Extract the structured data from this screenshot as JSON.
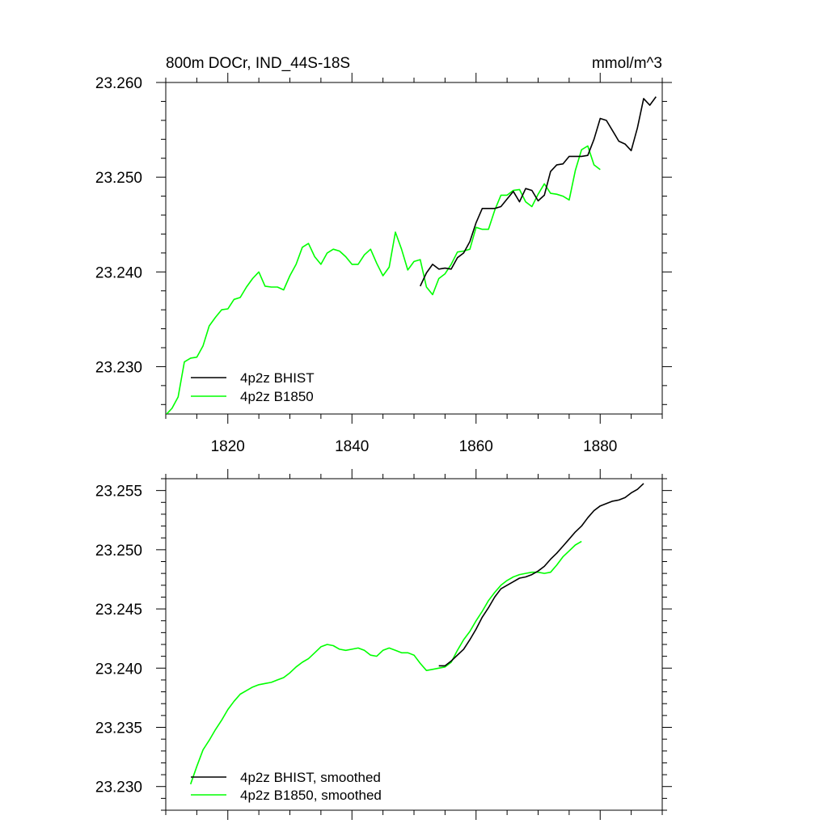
{
  "chart_data": [
    {
      "type": "line",
      "title": "800m DOCr, IND_44S-18S",
      "units": "mmol/m^3",
      "xlim": [
        1810,
        1890
      ],
      "ylim": [
        23.225,
        23.26
      ],
      "x_ticks": [
        1820,
        1840,
        1860,
        1880
      ],
      "y_ticks": [
        23.23,
        23.24,
        23.25,
        23.26
      ],
      "y_tick_labels": [
        "23.230",
        "23.240",
        "23.250",
        "23.260"
      ],
      "grid": false,
      "legend_position": "bottom-left",
      "series": [
        {
          "name": "4p2z BHIST",
          "color": "#000000",
          "x": [
            1851,
            1852,
            1853,
            1854,
            1855,
            1856,
            1857,
            1858,
            1859,
            1860,
            1861,
            1862,
            1863,
            1864,
            1865,
            1866,
            1867,
            1868,
            1869,
            1870,
            1871,
            1872,
            1873,
            1874,
            1875,
            1876,
            1877,
            1878,
            1879,
            1880,
            1881,
            1882,
            1883,
            1884,
            1885,
            1886,
            1887,
            1888,
            1889
          ],
          "y": [
            23.2385,
            23.2399,
            23.2408,
            23.2403,
            23.2404,
            23.2403,
            23.2415,
            23.242,
            23.2432,
            23.2452,
            23.2467,
            23.2467,
            23.2467,
            23.2469,
            23.2477,
            23.2485,
            23.2474,
            23.2488,
            23.2486,
            23.2475,
            23.2481,
            23.2506,
            23.2513,
            23.2514,
            23.2522,
            23.2522,
            23.2522,
            23.2523,
            23.254,
            23.2562,
            23.256,
            23.2549,
            23.2538,
            23.2535,
            23.2528,
            23.2552,
            23.2583,
            23.2576,
            23.2585
          ]
        },
        {
          "name": "4p2z B1850",
          "color": "#00ff00",
          "x": [
            1810,
            1811,
            1812,
            1813,
            1814,
            1815,
            1816,
            1817,
            1818,
            1819,
            1820,
            1821,
            1822,
            1823,
            1824,
            1825,
            1826,
            1827,
            1828,
            1829,
            1830,
            1831,
            1832,
            1833,
            1834,
            1835,
            1836,
            1837,
            1838,
            1839,
            1840,
            1841,
            1842,
            1843,
            1844,
            1845,
            1846,
            1847,
            1848,
            1849,
            1850,
            1851,
            1852,
            1853,
            1854,
            1855,
            1856,
            1857,
            1858,
            1859,
            1860,
            1861,
            1862,
            1863,
            1864,
            1865,
            1866,
            1867,
            1868,
            1869,
            1870,
            1871,
            1872,
            1873,
            1874,
            1875,
            1876,
            1877,
            1878,
            1879,
            1880
          ],
          "y": [
            23.2249,
            23.2256,
            23.2268,
            23.2305,
            23.2309,
            23.231,
            23.2322,
            23.2343,
            23.2352,
            23.236,
            23.2361,
            23.2371,
            23.2373,
            23.2384,
            23.2393,
            23.24,
            23.2385,
            23.2384,
            23.2384,
            23.2381,
            23.2396,
            23.2408,
            23.2426,
            23.243,
            23.2416,
            23.2408,
            23.242,
            23.2424,
            23.2422,
            23.2416,
            23.2408,
            23.2408,
            23.2418,
            23.2424,
            23.2409,
            23.2396,
            23.2405,
            23.2442,
            23.2424,
            23.2402,
            23.2411,
            23.2413,
            23.2384,
            23.2376,
            23.2393,
            23.2398,
            23.2408,
            23.2421,
            23.2422,
            23.2424,
            23.2447,
            23.2445,
            23.2445,
            23.2465,
            23.2481,
            23.2481,
            23.2486,
            23.2487,
            23.2474,
            23.2469,
            23.2482,
            23.2493,
            23.2483,
            23.2482,
            23.248,
            23.2476,
            23.2507,
            23.2529,
            23.2533,
            23.2513,
            23.2508
          ]
        }
      ]
    },
    {
      "type": "line",
      "title": "",
      "xlim": [
        1810,
        1890
      ],
      "ylim": [
        23.228,
        23.256
      ],
      "x_ticks": [
        1820,
        1840,
        1860,
        1880
      ],
      "y_ticks": [
        23.23,
        23.235,
        23.24,
        23.245,
        23.25,
        23.255
      ],
      "y_tick_labels": [
        "23.230",
        "23.235",
        "23.240",
        "23.245",
        "23.250",
        "23.255"
      ],
      "grid": false,
      "legend_position": "bottom-left",
      "series": [
        {
          "name": "4p2z BHIST, smoothed",
          "color": "#000000",
          "x": [
            1854,
            1855,
            1856,
            1857,
            1858,
            1859,
            1860,
            1861,
            1862,
            1863,
            1864,
            1865,
            1866,
            1867,
            1868,
            1869,
            1870,
            1871,
            1872,
            1873,
            1874,
            1875,
            1876,
            1877,
            1878,
            1879,
            1880,
            1881,
            1882,
            1883,
            1884,
            1885,
            1886,
            1887
          ],
          "y": [
            23.2402,
            23.2402,
            23.2406,
            23.2411,
            23.2416,
            23.2424,
            23.2433,
            23.2443,
            23.2451,
            23.246,
            23.2467,
            23.247,
            23.2473,
            23.2476,
            23.2477,
            23.2479,
            23.2482,
            23.2486,
            23.2492,
            23.2497,
            23.2503,
            23.2509,
            23.2515,
            23.252,
            23.2527,
            23.2533,
            23.2537,
            23.2539,
            23.2541,
            23.2542,
            23.2544,
            23.2548,
            23.2551,
            23.2556
          ]
        },
        {
          "name": "4p2z B1850, smoothed",
          "color": "#00ff00",
          "x": [
            1814,
            1815,
            1816,
            1817,
            1818,
            1819,
            1820,
            1821,
            1822,
            1823,
            1824,
            1825,
            1826,
            1827,
            1828,
            1829,
            1830,
            1831,
            1832,
            1833,
            1834,
            1835,
            1836,
            1837,
            1838,
            1839,
            1840,
            1841,
            1842,
            1843,
            1844,
            1845,
            1846,
            1847,
            1848,
            1849,
            1850,
            1851,
            1852,
            1853,
            1854,
            1855,
            1856,
            1857,
            1858,
            1859,
            1860,
            1861,
            1862,
            1863,
            1864,
            1865,
            1866,
            1867,
            1868,
            1869,
            1870,
            1871,
            1872,
            1873,
            1874,
            1875,
            1876,
            1877
          ],
          "y": [
            23.2302,
            23.2317,
            23.2331,
            23.2339,
            23.2348,
            23.2356,
            23.2365,
            23.2372,
            23.2378,
            23.2381,
            23.2384,
            23.2386,
            23.2387,
            23.2388,
            23.239,
            23.2392,
            23.2396,
            23.2401,
            23.2405,
            23.2408,
            23.2413,
            23.2418,
            23.242,
            23.2419,
            23.2416,
            23.2415,
            23.2416,
            23.2417,
            23.2415,
            23.2411,
            23.241,
            23.2415,
            23.2417,
            23.2415,
            23.2413,
            23.2413,
            23.2411,
            23.2404,
            23.2398,
            23.2399,
            23.24,
            23.2401,
            23.2405,
            23.2415,
            23.2424,
            23.2431,
            23.244,
            23.2448,
            23.2457,
            23.2464,
            23.247,
            23.2474,
            23.2477,
            23.2479,
            23.248,
            23.2481,
            23.2481,
            23.248,
            23.2481,
            23.2487,
            23.2494,
            23.2499,
            23.2504,
            23.2507
          ]
        }
      ]
    }
  ]
}
